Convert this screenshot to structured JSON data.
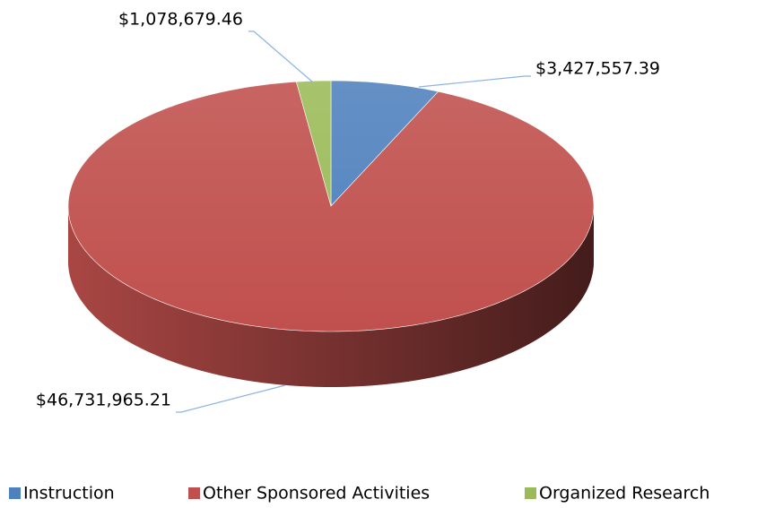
{
  "chart_data": {
    "type": "pie",
    "categories": [
      "Instruction",
      "Other Sponsored Activities",
      "Organized Research"
    ],
    "values": [
      3427557.39,
      46731965.21,
      1078679.46
    ],
    "value_labels": [
      "$3,427,557.39",
      "$46,731,965.21",
      "$1,078,679.46"
    ],
    "colors": [
      "#4f81bd",
      "#c0504d",
      "#9bbb59"
    ],
    "legend": "bottom"
  }
}
